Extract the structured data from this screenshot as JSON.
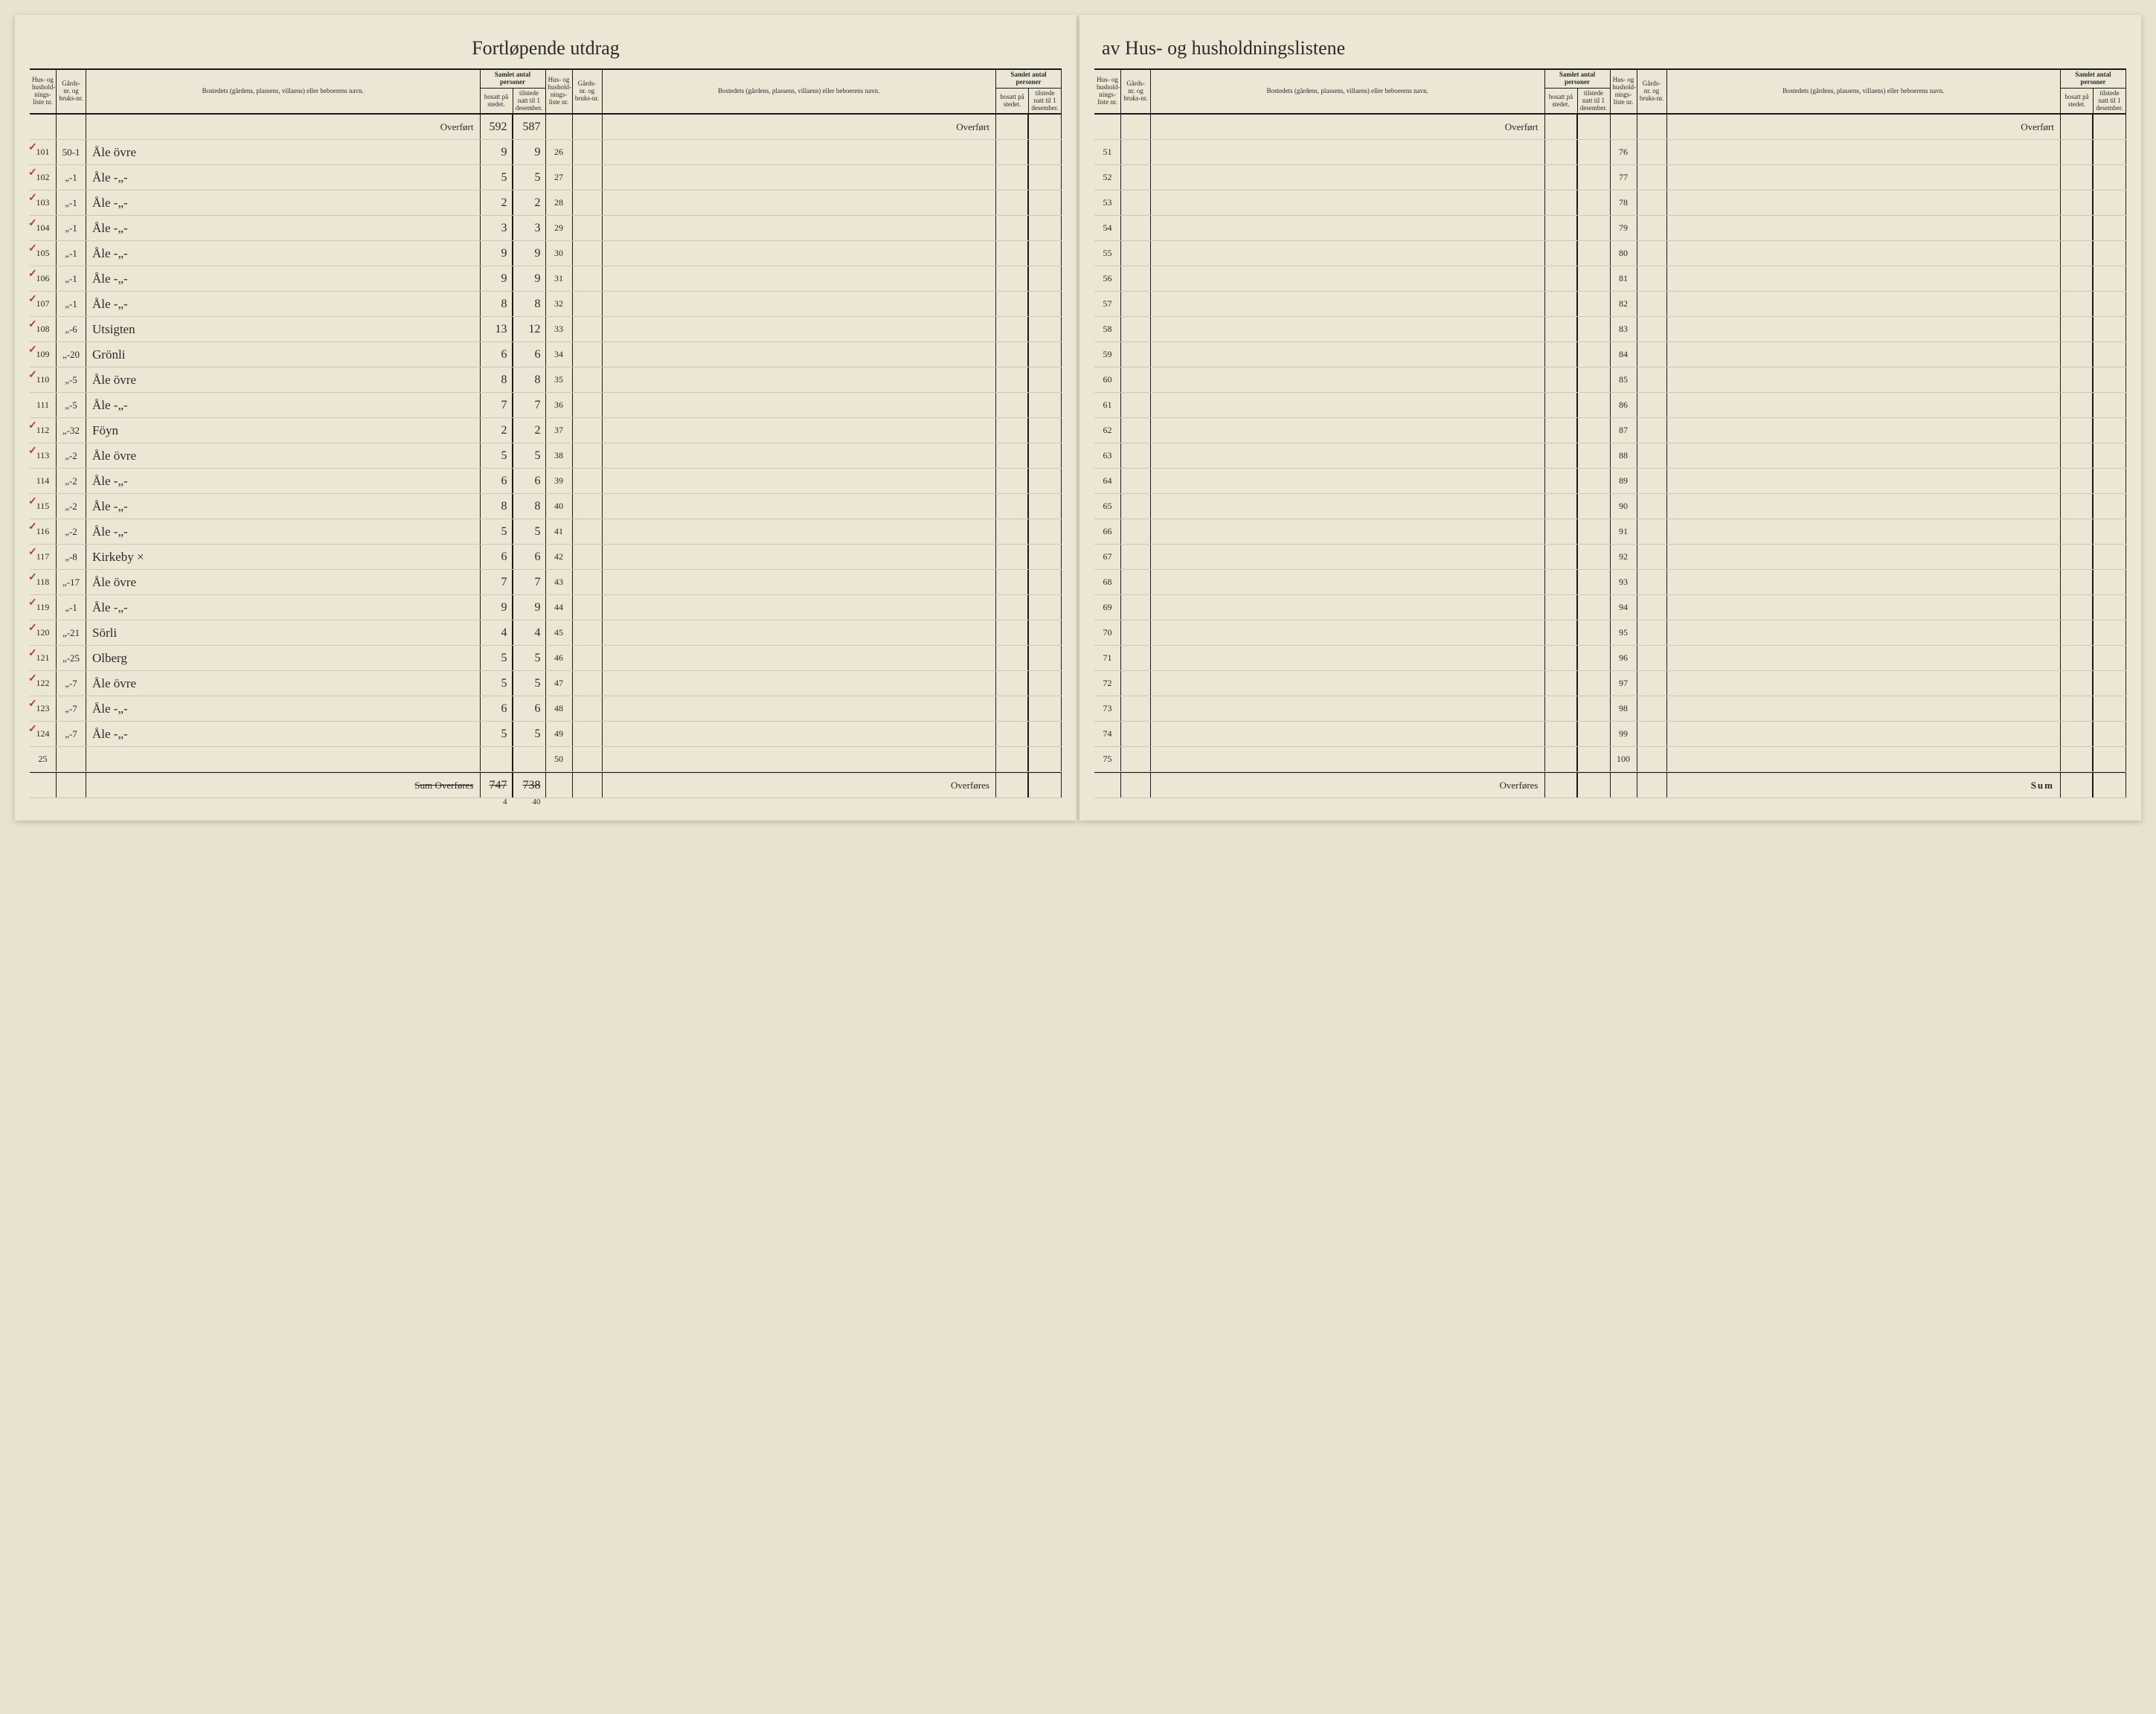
{
  "title_left": "Fortløpende utdrag",
  "title_right": "av Hus- og husholdningslistene",
  "headers": {
    "liste": "Hus- og hushold-nings-liste nr.",
    "gard": "Gårds-nr. og bruks-nr.",
    "bosted": "Bostedets (gårdens, plassens, villaens) eller beboerens navn.",
    "group": "Samlet antal personer",
    "bosatt": "bosatt på stedet.",
    "tilstede": "tilstede natt til 1 desember."
  },
  "overfort_top": "Overført",
  "overfort_top_hand": "Overført",
  "overfores": "Overføres",
  "sum_label": "Sum",
  "sum_strike": "Sum Overføres",
  "carry": {
    "bosatt": "592",
    "tilstede": "587"
  },
  "total": {
    "bosatt": "747",
    "tilstede": "738",
    "bosatt_corr": "4",
    "tilstede_corr": "40"
  },
  "block1": [
    {
      "tick": true,
      "liste": "101",
      "gard": "50-1",
      "bosted": "Åle övre",
      "bosatt": "9",
      "tilstede": "9"
    },
    {
      "tick": true,
      "liste": "102",
      "gard": "„-1",
      "bosted": "Åle   -„-",
      "bosatt": "5",
      "tilstede": "5"
    },
    {
      "tick": true,
      "liste": "103",
      "gard": "„-1",
      "bosted": "Åle   -„-",
      "bosatt": "2",
      "tilstede": "2"
    },
    {
      "tick": true,
      "liste": "104",
      "gard": "„-1",
      "bosted": "Åle   -„-",
      "bosatt": "3",
      "tilstede": "3"
    },
    {
      "tick": true,
      "liste": "105",
      "gard": "„-1",
      "bosted": "Åle   -„-",
      "bosatt": "9",
      "tilstede": "9"
    },
    {
      "tick": true,
      "liste": "106",
      "gard": "„-1",
      "bosted": "Åle   -„-",
      "bosatt": "9",
      "tilstede": "9"
    },
    {
      "tick": true,
      "liste": "107",
      "gard": "„-1",
      "bosted": "Åle   -„-",
      "bosatt": "8",
      "tilstede": "8"
    },
    {
      "tick": true,
      "liste": "108",
      "gard": "„-6",
      "bosted": "Utsigten",
      "bosatt": "13",
      "tilstede": "12"
    },
    {
      "tick": true,
      "liste": "109",
      "gard": "„-20",
      "bosted": "Grönli",
      "bosatt": "6",
      "tilstede": "6"
    },
    {
      "tick": true,
      "liste": "110",
      "gard": "„-5",
      "bosted": "Åle övre",
      "bosatt": "8",
      "tilstede": "8"
    },
    {
      "tick": false,
      "liste": "111",
      "gard": "„-5",
      "bosted": "Åle   -„-",
      "bosatt": "7",
      "tilstede": "7"
    },
    {
      "tick": true,
      "liste": "112",
      "gard": "„-32",
      "bosted": "Föyn",
      "bosatt": "2",
      "tilstede": "2"
    },
    {
      "tick": true,
      "liste": "113",
      "gard": "„-2",
      "bosted": "Åle övre",
      "bosatt": "5",
      "tilstede": "5"
    },
    {
      "tick": false,
      "liste": "114",
      "gard": "„-2",
      "bosted": "Åle   -„-",
      "bosatt": "6",
      "tilstede": "6"
    },
    {
      "tick": true,
      "liste": "115",
      "gard": "„-2",
      "bosted": "Åle   -„-",
      "bosatt": "8",
      "tilstede": "8"
    },
    {
      "tick": true,
      "liste": "116",
      "gard": "„-2",
      "bosted": "Åle   -„-",
      "bosatt": "5",
      "tilstede": "5"
    },
    {
      "tick": true,
      "liste": "117",
      "gard": "„-8",
      "bosted": "Kirkeby        ×",
      "bosatt": "6",
      "tilstede": "6"
    },
    {
      "tick": true,
      "liste": "118",
      "gard": "„-17",
      "bosted": "Åle övre",
      "bosatt": "7",
      "tilstede": "7"
    },
    {
      "tick": true,
      "liste": "119",
      "gard": "„-1",
      "bosted": "Åle   -„-",
      "bosatt": "9",
      "tilstede": "9"
    },
    {
      "tick": true,
      "liste": "120",
      "gard": "„-21",
      "bosted": "Sörli",
      "bosatt": "4",
      "tilstede": "4"
    },
    {
      "tick": true,
      "liste": "121",
      "gard": "„-25",
      "bosted": "Olberg",
      "bosatt": "5",
      "tilstede": "5"
    },
    {
      "tick": true,
      "liste": "122",
      "gard": "„-7",
      "bosted": "Åle övre",
      "bosatt": "5",
      "tilstede": "5"
    },
    {
      "tick": true,
      "liste": "123",
      "gard": "„-7",
      "bosted": "Åle   -„-",
      "bosatt": "6",
      "tilstede": "6"
    },
    {
      "tick": true,
      "liste": "124",
      "gard": "„-7",
      "bosted": "Åle   -„-",
      "bosatt": "5",
      "tilstede": "5"
    },
    {
      "tick": false,
      "liste": "25",
      "gard": "",
      "bosted": "",
      "bosatt": "",
      "tilstede": ""
    }
  ],
  "block2_start": 26,
  "block3_start": 51,
  "block4_start": 76,
  "rows_per_block": 25
}
